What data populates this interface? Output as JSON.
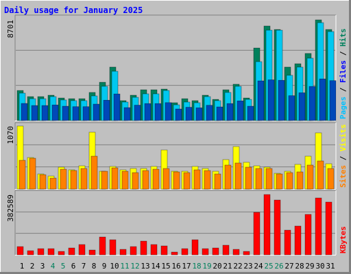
{
  "title": "Daily usage for January 2025",
  "legend_separator": " / ",
  "chart_data": [
    {
      "type": "bar",
      "ylim": [
        0,
        8938
      ],
      "yticks": [
        8701
      ],
      "series": [
        {
          "name": "Hits",
          "color": "#00805C",
          "legend_color": "#00805C",
          "values": [
            2600,
            2070,
            2070,
            2190,
            1950,
            1890,
            1890,
            2430,
            3310,
            4620,
            1720,
            2190,
            2660,
            2660,
            2720,
            1540,
            1890,
            1720,
            2190,
            1830,
            2660,
            3140,
            1950,
            6270,
            8170,
            7870,
            4620,
            4910,
            5800,
            8701,
            7870
          ]
        },
        {
          "name": "Files",
          "color": "#00C8F0",
          "legend_color": "#0000FF",
          "values": [
            2370,
            1890,
            1890,
            2070,
            1780,
            1720,
            1720,
            2130,
            2960,
            4260,
            1600,
            2010,
            2310,
            2310,
            2600,
            1360,
            1600,
            1540,
            2070,
            1720,
            2430,
            2960,
            1830,
            5090,
            7810,
            7810,
            3910,
            4620,
            5390,
            8460,
            7690
          ]
        },
        {
          "name": "Pages",
          "color": "#0048B8",
          "legend_color": "#00C0FF",
          "values": [
            1480,
            1300,
            1300,
            1350,
            1240,
            1200,
            1200,
            1420,
            1760,
            2300,
            1120,
            1330,
            1470,
            1470,
            1550,
            1000,
            1150,
            1100,
            1320,
            1180,
            1470,
            1700,
            1240,
            3430,
            3520,
            3480,
            2150,
            2400,
            2950,
            3600,
            3450
          ]
        }
      ]
    },
    {
      "type": "bar",
      "ylim": [
        0,
        1093
      ],
      "yticks": [
        1070
      ],
      "series": [
        {
          "name": "Visits",
          "color": "#FFFF00",
          "legend_color": "#FFFF00",
          "values": [
            1070,
            535,
            256,
            221,
            372,
            326,
            395,
            965,
            302,
            384,
            326,
            349,
            349,
            384,
            663,
            302,
            302,
            384,
            349,
            302,
            500,
            721,
            454,
            395,
            372,
            267,
            302,
            419,
            558,
            954,
            430
          ]
        },
        {
          "name": "Sites",
          "color": "#FF8000",
          "legend_color": "#FF8000",
          "values": [
            488,
            523,
            244,
            186,
            337,
            314,
            349,
            558,
            302,
            360,
            302,
            279,
            314,
            337,
            349,
            291,
            279,
            326,
            314,
            256,
            407,
            442,
            372,
            349,
            349,
            256,
            279,
            291,
            407,
            477,
            349
          ]
        }
      ]
    },
    {
      "type": "bar",
      "ylim": [
        0,
        395600
      ],
      "yticks": [
        382589
      ],
      "categories": [
        "1",
        "2",
        "3",
        "4",
        "5",
        "6",
        "7",
        "8",
        "9",
        "10",
        "11",
        "12",
        "13",
        "14",
        "15",
        "16",
        "17",
        "18",
        "19",
        "20",
        "21",
        "22",
        "23",
        "24",
        "25",
        "26",
        "27",
        "28",
        "29",
        "30",
        "31"
      ],
      "weekend": [
        false,
        false,
        false,
        true,
        true,
        false,
        false,
        false,
        false,
        false,
        true,
        true,
        false,
        false,
        false,
        false,
        false,
        true,
        true,
        false,
        false,
        false,
        false,
        false,
        true,
        true,
        false,
        false,
        false,
        false,
        false
      ],
      "weekday_color": "#000000",
      "weekend_color": "#00805C",
      "series": [
        {
          "name": "KBytes",
          "color": "#FF0000",
          "legend_color": "#FF0000",
          "values": [
            52170,
            26090,
            39130,
            39130,
            21740,
            43480,
            65210,
            30430,
            113000,
            95650,
            34780,
            52170,
            86950,
            65210,
            56520,
            17390,
            39130,
            95650,
            39130,
            43480,
            60870,
            34780,
            21740,
            269550,
            382589,
            347800,
            156510,
            182600,
            256510,
            360850,
            334760
          ]
        }
      ]
    }
  ]
}
